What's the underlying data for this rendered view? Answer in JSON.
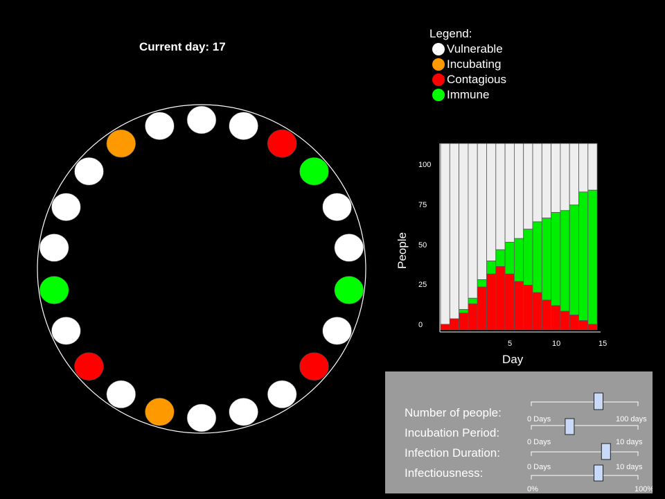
{
  "header": {
    "current_day": "Current day: 17"
  },
  "colors": {
    "vulnerable": "#ffffff",
    "incubating": "#ff9900",
    "contagious": "#ff0000",
    "immune": "#00ff00",
    "chart_vulnerable": "#eeeeee",
    "chart_contagious": "#ff0000",
    "chart_immune": "#00ee00"
  },
  "legend": {
    "title": "Legend:",
    "items": [
      {
        "label": "Vulnerable",
        "state": "vulnerable"
      },
      {
        "label": "Incubating",
        "state": "incubating"
      },
      {
        "label": "Contagious",
        "state": "contagious"
      },
      {
        "label": "Immune",
        "state": "immune"
      }
    ]
  },
  "people": [
    "vulnerable",
    "vulnerable",
    "contagious",
    "immune",
    "vulnerable",
    "vulnerable",
    "immune",
    "vulnerable",
    "contagious",
    "vulnerable",
    "vulnerable",
    "vulnerable",
    "incubating",
    "vulnerable",
    "contagious",
    "vulnerable",
    "immune",
    "vulnerable",
    "vulnerable",
    "vulnerable",
    "incubating",
    "vulnerable"
  ],
  "chart_data": {
    "type": "bar",
    "stacked": true,
    "xlabel": "Day",
    "ylabel": "People",
    "x_ticks": [
      "5",
      "10",
      "15"
    ],
    "y_ticks": [
      "0",
      "25",
      "50",
      "75",
      "100"
    ],
    "ylim": [
      0,
      100
    ],
    "total": 100,
    "series": [
      {
        "key": "contagious",
        "values": [
          3,
          6,
          9,
          14,
          23,
          30,
          34,
          30,
          26,
          24,
          20,
          16,
          13,
          10,
          8,
          5,
          3
        ]
      },
      {
        "key": "immune",
        "values": [
          0,
          0,
          2,
          3,
          4,
          7,
          9,
          17,
          23,
          30,
          38,
          44,
          50,
          54,
          59,
          69,
          72
        ]
      }
    ]
  },
  "controls": {
    "sliders": [
      {
        "label": "Number of people:",
        "min_label": "0  Days",
        "max_label": "100 days",
        "value": 0.63
      },
      {
        "label": "Incubation Period:",
        "min_label": "0  Days",
        "max_label": "10  days",
        "value": 0.36
      },
      {
        "label": "Infection Duration:",
        "min_label": "0  Days",
        "max_label": "10  days",
        "value": 0.7
      },
      {
        "label": "Infectiousness:",
        "min_label": "0%",
        "max_label": "100%",
        "value": 0.63
      }
    ]
  }
}
